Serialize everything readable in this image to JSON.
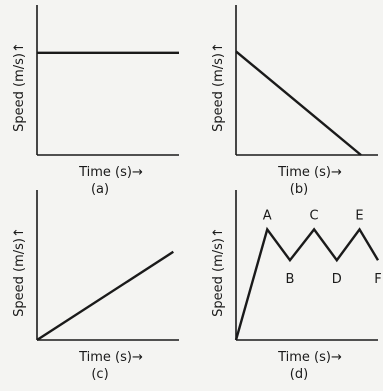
{
  "chart_data": [
    {
      "type": "line",
      "panel_label": "(a)",
      "xlabel": "Time (s)→",
      "ylabel": "Speed (m/s)↑",
      "xlim": [
        0,
        10
      ],
      "ylim": [
        0,
        10
      ],
      "grid": false,
      "series": [
        {
          "x": [
            0,
            10
          ],
          "y": [
            7.3,
            7.3
          ]
        }
      ],
      "annotations": []
    },
    {
      "type": "line",
      "panel_label": "(b)",
      "xlabel": "Time (s)→",
      "ylabel": "Speed (m/s)↑",
      "xlim": [
        0,
        10
      ],
      "ylim": [
        0,
        10
      ],
      "grid": false,
      "series": [
        {
          "x": [
            0,
            8.8
          ],
          "y": [
            7.4,
            0
          ]
        }
      ],
      "annotations": []
    },
    {
      "type": "line",
      "panel_label": "(c)",
      "xlabel": "Time (s)→",
      "ylabel": "Speed (m/s)↑",
      "xlim": [
        0,
        10
      ],
      "ylim": [
        0,
        10
      ],
      "grid": false,
      "series": [
        {
          "x": [
            0,
            9.6
          ],
          "y": [
            0,
            6.3
          ]
        }
      ],
      "annotations": []
    },
    {
      "type": "line",
      "panel_label": "(d)",
      "xlabel": "Time (s)→",
      "ylabel": "Speed (m/s)↑",
      "xlim": [
        0,
        10
      ],
      "ylim": [
        0,
        10
      ],
      "grid": false,
      "series": [
        {
          "x": [
            0,
            2.2,
            3.8,
            5.5,
            7.1,
            8.7,
            10
          ],
          "y": [
            0,
            7.9,
            5.7,
            7.9,
            5.7,
            7.9,
            5.7
          ]
        }
      ],
      "annotations": [
        {
          "text": "A",
          "x": 2.2,
          "y": 7.9,
          "side": "above"
        },
        {
          "text": "B",
          "x": 3.8,
          "y": 5.7,
          "side": "below"
        },
        {
          "text": "C",
          "x": 5.5,
          "y": 7.9,
          "side": "above"
        },
        {
          "text": "D",
          "x": 7.1,
          "y": 5.7,
          "side": "below"
        },
        {
          "text": "E",
          "x": 8.7,
          "y": 7.9,
          "side": "above"
        },
        {
          "text": "F",
          "x": 10,
          "y": 5.7,
          "side": "below"
        }
      ]
    }
  ]
}
